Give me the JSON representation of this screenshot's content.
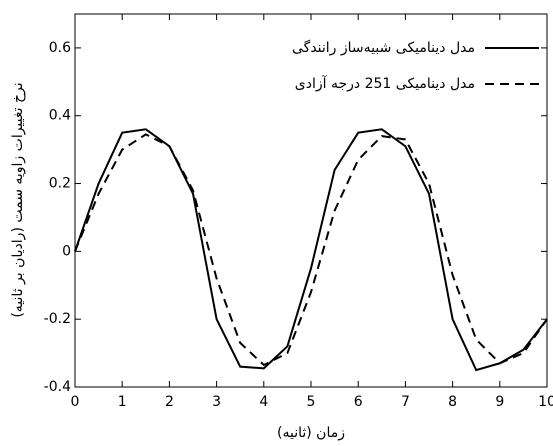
{
  "chart_data": {
    "type": "line",
    "x_label": "زمان (ثانیه)",
    "y_label": "نرخ تغییرات زاویه سمت (رادیان بر ثانیه)",
    "x": [
      0,
      0.5,
      1,
      1.5,
      2,
      2.5,
      3,
      3.5,
      4,
      4.5,
      5,
      5.5,
      6,
      6.5,
      7,
      7.5,
      8,
      8.5,
      9,
      9.5,
      10
    ],
    "series": [
      {
        "name": "مدل دینامیکی شبیه‌ساز رانندگی",
        "color": "#000000",
        "dash": "solid",
        "values": [
          0,
          0.2,
          0.35,
          0.36,
          0.31,
          0.17,
          -0.2,
          -0.34,
          -0.345,
          -0.28,
          -0.05,
          0.24,
          0.35,
          0.36,
          0.31,
          0.17,
          -0.2,
          -0.35,
          -0.33,
          -0.29,
          -0.2
        ]
      },
      {
        "name": "مدل دینامیکی 251 درجه آزادی",
        "color": "#000000",
        "dash": "dashed",
        "values": [
          0,
          0.17,
          0.3,
          0.345,
          0.31,
          0.18,
          -0.08,
          -0.27,
          -0.335,
          -0.3,
          -0.12,
          0.12,
          0.27,
          0.34,
          0.33,
          0.2,
          -0.07,
          -0.26,
          -0.33,
          -0.3,
          -0.2
        ]
      }
    ],
    "xlim": [
      0,
      10
    ],
    "xticks": [
      0,
      1,
      2,
      3,
      4,
      5,
      6,
      7,
      8,
      9,
      10
    ],
    "ylim": [
      -0.4,
      0.7
    ],
    "yticks": [
      -0.4,
      -0.2,
      0,
      0.2,
      0.4,
      0.6
    ],
    "legend": "upper right",
    "grid": false
  }
}
